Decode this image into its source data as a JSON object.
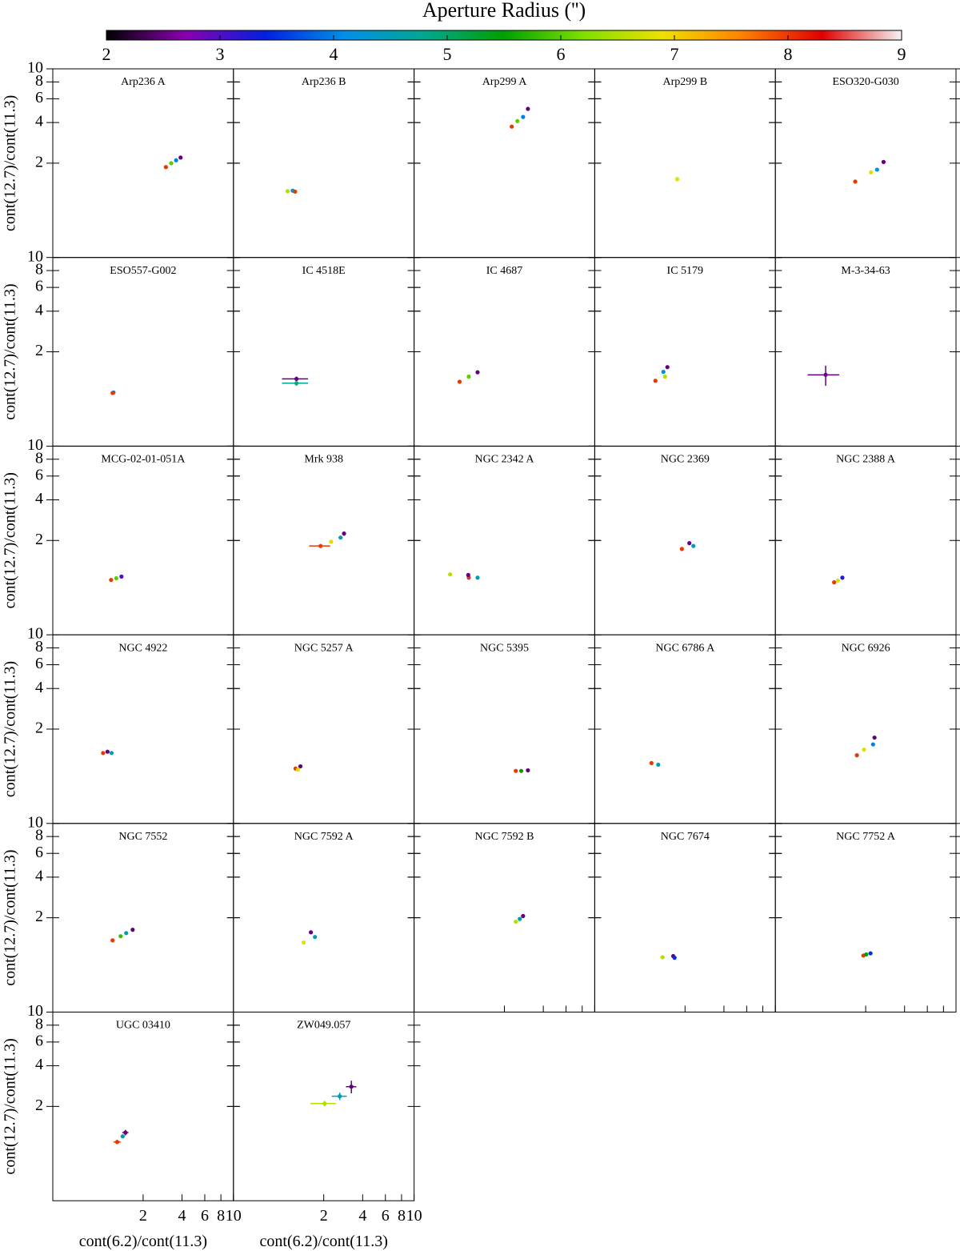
{
  "chart_data": {
    "type": "scatter",
    "log_x": true,
    "log_y": true,
    "xlabel": "cont(6.2)/cont(11.3)",
    "ylabel": "cont(12.7)/cont(11.3)",
    "xlim": [
      0.4,
      10
    ],
    "ylim": [
      0.4,
      10
    ],
    "xticks": [
      2,
      4,
      6,
      8,
      10
    ],
    "yticks": [
      2,
      4,
      6,
      8,
      10
    ],
    "colorbar": {
      "label": "Aperture Radius ('')",
      "clim": [
        2,
        9
      ],
      "ticks": [
        2,
        3,
        4,
        5,
        6,
        7,
        8,
        9
      ],
      "colormap": [
        "#000000",
        "#8a00b0",
        "#0020e0",
        "#0090e8",
        "#00a890",
        "#00a000",
        "#80e000",
        "#f0e000",
        "#ff8000",
        "#e00000",
        "#f4f4f4"
      ]
    },
    "panels": [
      {
        "title": "Arp236 A",
        "x": [
          3.0,
          3.3,
          3.6,
          3.9
        ],
        "y": [
          1.87,
          2.0,
          2.1,
          2.2
        ],
        "r": [
          8,
          6,
          4,
          2.5
        ]
      },
      {
        "title": "Arp236 B",
        "x": [
          1.05,
          1.15,
          1.2
        ],
        "y": [
          1.24,
          1.25,
          1.23
        ],
        "r": [
          6.5,
          4.5,
          8
        ]
      },
      {
        "title": "Arp299 A",
        "x": [
          2.28,
          2.52,
          2.79,
          3.04
        ],
        "y": [
          3.73,
          4.1,
          4.4,
          5.05
        ],
        "r": [
          8,
          6,
          4,
          2.5
        ]
      },
      {
        "title": "Arp299 B",
        "x": [
          1.74,
          1.74
        ],
        "y": [
          1.55,
          1.52
        ],
        "r": [
          9,
          6.8
        ]
      },
      {
        "title": "ESO320-G030",
        "x": [
          1.66,
          2.2,
          2.45,
          2.75
        ],
        "y": [
          1.46,
          1.71,
          1.79,
          2.04
        ],
        "r": [
          8,
          6.8,
          4.2,
          2.5
        ]
      },
      {
        "title": "ESO557-G002",
        "x": [
          1.18,
          1.16
        ],
        "y": [
          1.0,
          0.99
        ],
        "r": [
          4,
          8
        ]
      },
      {
        "title": "IC 4518E",
        "x": [
          1.23,
          1.23
        ],
        "y": [
          1.26,
          1.17
        ],
        "r": [
          2.5,
          4.8
        ],
        "xerr": [
          0.28,
          0.28
        ],
        "yerr": [
          0.05,
          0.05
        ]
      },
      {
        "title": "IC 4687",
        "x": [
          0.9,
          1.06,
          1.24
        ],
        "y": [
          1.2,
          1.31,
          1.41
        ],
        "r": [
          8,
          6,
          2.5
        ]
      },
      {
        "title": "IC 5179",
        "x": [
          1.18,
          1.4,
          1.36,
          1.46
        ],
        "y": [
          1.22,
          1.31,
          1.42,
          1.54
        ],
        "r": [
          8,
          6.5,
          4.2,
          2.5
        ]
      },
      {
        "title": "M-3-34-63",
        "x": [
          0.98
        ],
        "y": [
          1.35
        ],
        "r": [
          2.5
        ],
        "xerr": [
          0.27
        ],
        "yerr": [
          0.23
        ]
      },
      {
        "title": "MCG-02-01-051A",
        "x": [
          1.13,
          1.24,
          1.36
        ],
        "y": [
          1.02,
          1.05,
          1.08
        ],
        "r": [
          8,
          6,
          3
        ]
      },
      {
        "title": "Mrk 938",
        "x": [
          1.89,
          2.28,
          2.7,
          2.87
        ],
        "y": [
          1.82,
          1.96,
          2.1,
          2.25
        ],
        "r": [
          8,
          6.8,
          4.5,
          2.5
        ],
        "xerr": [
          0.35,
          0,
          0.1,
          0.1
        ],
        "yerr": [
          0.05,
          0,
          0.05,
          0.08
        ]
      },
      {
        "title": "NGC 2342 A",
        "x": [
          0.76,
          1.06,
          1.05,
          1.24
        ],
        "y": [
          1.12,
          1.06,
          1.11,
          1.06
        ],
        "r": [
          6.5,
          8,
          2.5,
          4.5
        ]
      },
      {
        "title": "NGC 2369",
        "x": [
          1.89,
          2.16,
          2.32
        ],
        "y": [
          1.73,
          1.91,
          1.82
        ],
        "r": [
          8,
          2.5,
          4.5
        ]
      },
      {
        "title": "NGC 2388 A",
        "x": [
          1.14,
          1.22,
          1.32
        ],
        "y": [
          0.98,
          1.01,
          1.06
        ],
        "r": [
          8,
          6.8,
          3.2
        ]
      },
      {
        "title": "NGC 4922",
        "x": [
          0.98,
          1.06,
          1.14
        ],
        "y": [
          1.33,
          1.36,
          1.33
        ],
        "r": [
          8,
          2.5,
          4.5
        ]
      },
      {
        "title": "NGC 5257 A",
        "x": [
          1.21,
          1.26,
          1.32
        ],
        "y": [
          1.02,
          1.0,
          1.06
        ],
        "r": [
          8,
          6.8,
          2.5
        ]
      },
      {
        "title": "NGC 5395",
        "x": [
          2.45,
          2.7,
          3.04
        ],
        "y": [
          0.98,
          0.98,
          0.99
        ],
        "r": [
          8,
          5.5,
          2.5
        ]
      },
      {
        "title": "NGC 6786 A",
        "x": [
          1.1,
          1.24
        ],
        "y": [
          1.12,
          1.09
        ],
        "r": [
          8,
          4.5
        ]
      },
      {
        "title": "NGC 6926",
        "x": [
          1.71,
          1.94,
          2.28,
          2.34
        ],
        "y": [
          1.28,
          1.41,
          1.54,
          1.73
        ],
        "r": [
          8,
          6.8,
          4,
          2.5
        ]
      },
      {
        "title": "NGC 7552",
        "x": [
          1.16,
          1.34,
          1.48,
          1.66
        ],
        "y": [
          1.36,
          1.46,
          1.54,
          1.63
        ],
        "r": [
          8,
          5.8,
          4.5,
          2.5
        ]
      },
      {
        "title": "NGC 7592 A",
        "x": [
          1.4,
          1.71,
          1.59
        ],
        "y": [
          1.31,
          1.44,
          1.56
        ],
        "r": [
          6.8,
          4.5,
          2.5
        ]
      },
      {
        "title": "NGC 7592 B",
        "x": [
          2.45,
          2.63,
          2.79
        ],
        "y": [
          1.87,
          1.96,
          2.06
        ],
        "r": [
          6.5,
          4.5,
          2.5
        ]
      },
      {
        "title": "NGC 7674",
        "x": [
          1.34,
          1.62,
          1.66
        ],
        "y": [
          1.02,
          1.04,
          1.01
        ],
        "r": [
          6.5,
          2.5,
          3.5
        ]
      },
      {
        "title": "NGC 7752 A",
        "x": [
          1.92,
          2.02,
          2.18
        ],
        "y": [
          1.05,
          1.07,
          1.09
        ],
        "r": [
          8,
          5.5,
          3.5
        ]
      },
      {
        "title": "UGC 03410",
        "x": [
          1.26,
          1.39,
          1.46
        ],
        "y": [
          1.09,
          1.2,
          1.28
        ],
        "r": [
          8,
          4.5,
          2.5
        ],
        "xerr": [
          0.08,
          0.05,
          0.08
        ],
        "yerr": [
          0.04,
          0.03,
          0.06
        ]
      },
      {
        "title": "ZW049.057",
        "x": [
          2.03,
          2.66,
          3.27
        ],
        "y": [
          2.1,
          2.38,
          2.8
        ],
        "r": [
          6.5,
          4.5,
          2.5
        ],
        "xerr": [
          0.45,
          0.35,
          0.3
        ],
        "yerr": [
          0.1,
          0.15,
          0.3
        ]
      }
    ]
  }
}
